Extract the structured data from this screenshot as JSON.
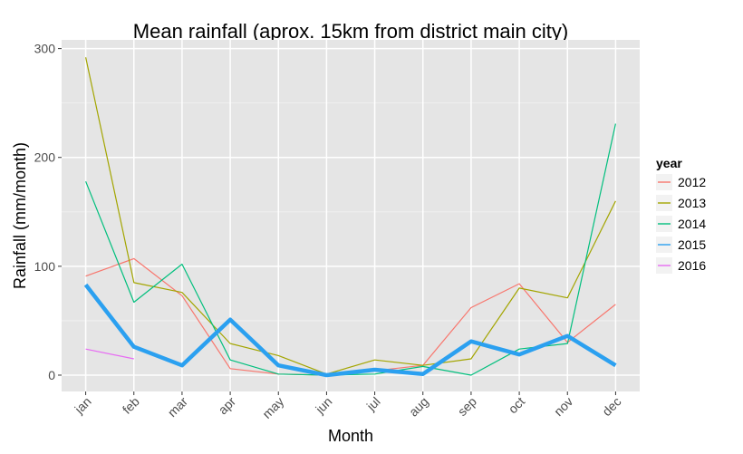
{
  "chart_data": {
    "type": "line",
    "title": "Mean rainfall (aprox. 15km from district main city)",
    "xlabel": "Month",
    "ylabel": "Rainfall (mm/month)",
    "categories": [
      "jan",
      "feb",
      "mar",
      "apr",
      "may",
      "jun",
      "jul",
      "aug",
      "sep",
      "oct",
      "nov",
      "dec"
    ],
    "ylim": [
      -15,
      308
    ],
    "yticks": [
      0,
      100,
      200,
      300
    ],
    "grid": true,
    "legend": {
      "title": "year",
      "placement": "right"
    },
    "series": [
      {
        "name": "2012",
        "color": "#F8766D",
        "thick": false,
        "values": [
          91,
          107,
          73,
          6,
          1,
          0,
          4,
          9,
          62,
          84,
          30,
          65
        ]
      },
      {
        "name": "2013",
        "color": "#A3A500",
        "thick": false,
        "values": [
          292,
          85,
          76,
          29,
          18,
          1,
          14,
          9,
          15,
          80,
          71,
          160
        ]
      },
      {
        "name": "2014",
        "color": "#00BF7D",
        "thick": false,
        "values": [
          178,
          67,
          102,
          14,
          1,
          0,
          1,
          8,
          0,
          24,
          29,
          231
        ]
      },
      {
        "name": "2015",
        "color": "#2BA0F0",
        "thick": true,
        "values": [
          83,
          26,
          9,
          51,
          9,
          0,
          5,
          1,
          31,
          19,
          36,
          9
        ]
      },
      {
        "name": "2016",
        "color": "#E76BF3",
        "thick": false,
        "values": [
          24,
          15,
          null,
          null,
          null,
          null,
          null,
          null,
          null,
          null,
          null,
          null
        ]
      }
    ]
  }
}
